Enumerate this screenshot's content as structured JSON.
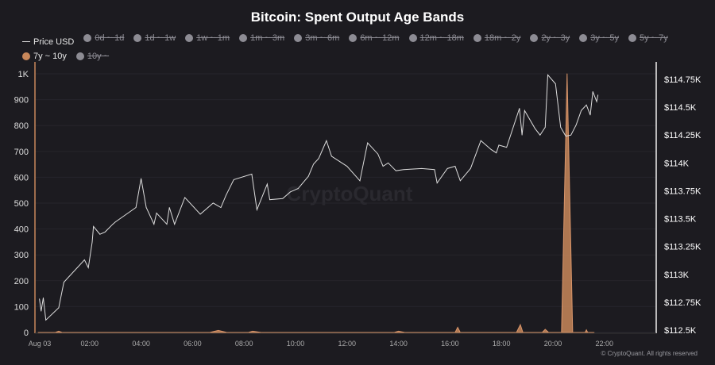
{
  "chart_data": {
    "type": "line",
    "title": "Bitcoin: Spent Output Age Bands",
    "watermark": "CryptoQuant",
    "copyright": "© CryptoQuant. All rights reserved",
    "grid": true,
    "legend_position": "top",
    "legend": [
      {
        "label": "Price USD",
        "type": "line",
        "active": true,
        "color": "#dddddd"
      },
      {
        "label": "0d ~ 1d",
        "active": false
      },
      {
        "label": "1d ~ 1w",
        "active": false
      },
      {
        "label": "1w ~ 1m",
        "active": false
      },
      {
        "label": "1m ~ 3m",
        "active": false
      },
      {
        "label": "3m ~ 6m",
        "active": false
      },
      {
        "label": "6m ~ 12m",
        "active": false
      },
      {
        "label": "12m ~ 18m",
        "active": false
      },
      {
        "label": "18m ~ 2y",
        "active": false
      },
      {
        "label": "2y ~ 3y",
        "active": false
      },
      {
        "label": "3y ~ 5y",
        "active": false
      },
      {
        "label": "5y ~ 7y",
        "active": false
      },
      {
        "label": "7y ~ 10y",
        "active": true,
        "color": "#c8875a"
      },
      {
        "label": "10y ~",
        "active": false
      }
    ],
    "x_ticks": [
      "Aug 03",
      "02:00",
      "04:00",
      "06:00",
      "08:00",
      "10:00",
      "12:00",
      "14:00",
      "16:00",
      "18:00",
      "20:00",
      "22:00"
    ],
    "y_left": {
      "range": [
        0,
        1000
      ],
      "ticks": [
        "0",
        "100",
        "200",
        "300",
        "400",
        "500",
        "600",
        "700",
        "800",
        "900",
        "1K"
      ]
    },
    "y_right": {
      "range": [
        112500,
        114750
      ],
      "ticks": [
        "$112.5K",
        "$112.75K",
        "$113K",
        "$113.25K",
        "$113.5K",
        "$113.75K",
        "$114K",
        "$114.25K",
        "$114.5K",
        "$114.75K"
      ]
    },
    "series": [
      {
        "name": "Price USD",
        "axis": "right",
        "color": "#dddddd",
        "x": [
          "00:03",
          "00:07",
          "00:12",
          "00:18",
          "00:48",
          "01:00",
          "01:48",
          "01:57",
          "02:06",
          "02:09",
          "02:24",
          "02:36",
          "02:54",
          "03:00",
          "03:48",
          "04:00",
          "04:12",
          "04:30",
          "04:36",
          "05:00",
          "05:06",
          "05:18",
          "05:42",
          "06:18",
          "06:48",
          "07:06",
          "07:18",
          "07:36",
          "08:18",
          "08:30",
          "08:54",
          "09:00",
          "09:30",
          "09:48",
          "10:06",
          "10:30",
          "10:42",
          "10:54",
          "11:12",
          "11:24",
          "12:00",
          "12:30",
          "12:48",
          "13:12",
          "13:24",
          "13:36",
          "13:54",
          "14:12",
          "14:54",
          "15:24",
          "15:30",
          "15:54",
          "16:12",
          "16:24",
          "16:48",
          "17:12",
          "17:36",
          "17:48",
          "17:54",
          "18:12",
          "18:42",
          "18:48",
          "18:54",
          "19:18",
          "19:30",
          "19:42",
          "19:48",
          "20:06",
          "20:18",
          "20:30",
          "20:42",
          "20:54",
          "21:06",
          "21:18",
          "21:27",
          "21:33",
          "21:42",
          "21:45"
        ],
        "y": [
          112780,
          112670,
          112790,
          112590,
          112700,
          112930,
          113130,
          113060,
          113290,
          113430,
          113360,
          113380,
          113450,
          113470,
          113600,
          113860,
          113600,
          113450,
          113550,
          113450,
          113600,
          113450,
          113690,
          113540,
          113640,
          113600,
          113710,
          113850,
          113900,
          113580,
          113810,
          113670,
          113680,
          113740,
          113770,
          113880,
          113990,
          114040,
          114200,
          114060,
          113970,
          113840,
          114180,
          114080,
          113970,
          114000,
          113930,
          113940,
          113950,
          113940,
          113820,
          113950,
          113970,
          113840,
          113950,
          114200,
          114120,
          114090,
          114160,
          114140,
          114490,
          114250,
          114470,
          114310,
          114250,
          114320,
          114790,
          114710,
          114320,
          114240,
          114250,
          114340,
          114470,
          114520,
          114430,
          114640,
          114550,
          114610
        ]
      },
      {
        "name": "7y ~ 10y",
        "axis": "left",
        "color": "#c8875a",
        "x": [
          "00:00",
          "00:40",
          "00:48",
          "00:56",
          "06:40",
          "07:00",
          "07:20",
          "08:10",
          "08:20",
          "08:40",
          "13:50",
          "14:00",
          "14:15",
          "16:12",
          "16:18",
          "16:24",
          "18:35",
          "18:44",
          "18:50",
          "19:35",
          "19:42",
          "19:50",
          "20:20",
          "20:33",
          "20:46",
          "21:15",
          "21:18",
          "21:21",
          "21:36"
        ],
        "y": [
          0,
          0,
          5,
          0,
          0,
          8,
          0,
          0,
          5,
          0,
          0,
          5,
          0,
          0,
          20,
          0,
          0,
          30,
          0,
          0,
          12,
          0,
          0,
          1000,
          0,
          0,
          10,
          0,
          0
        ]
      }
    ]
  }
}
